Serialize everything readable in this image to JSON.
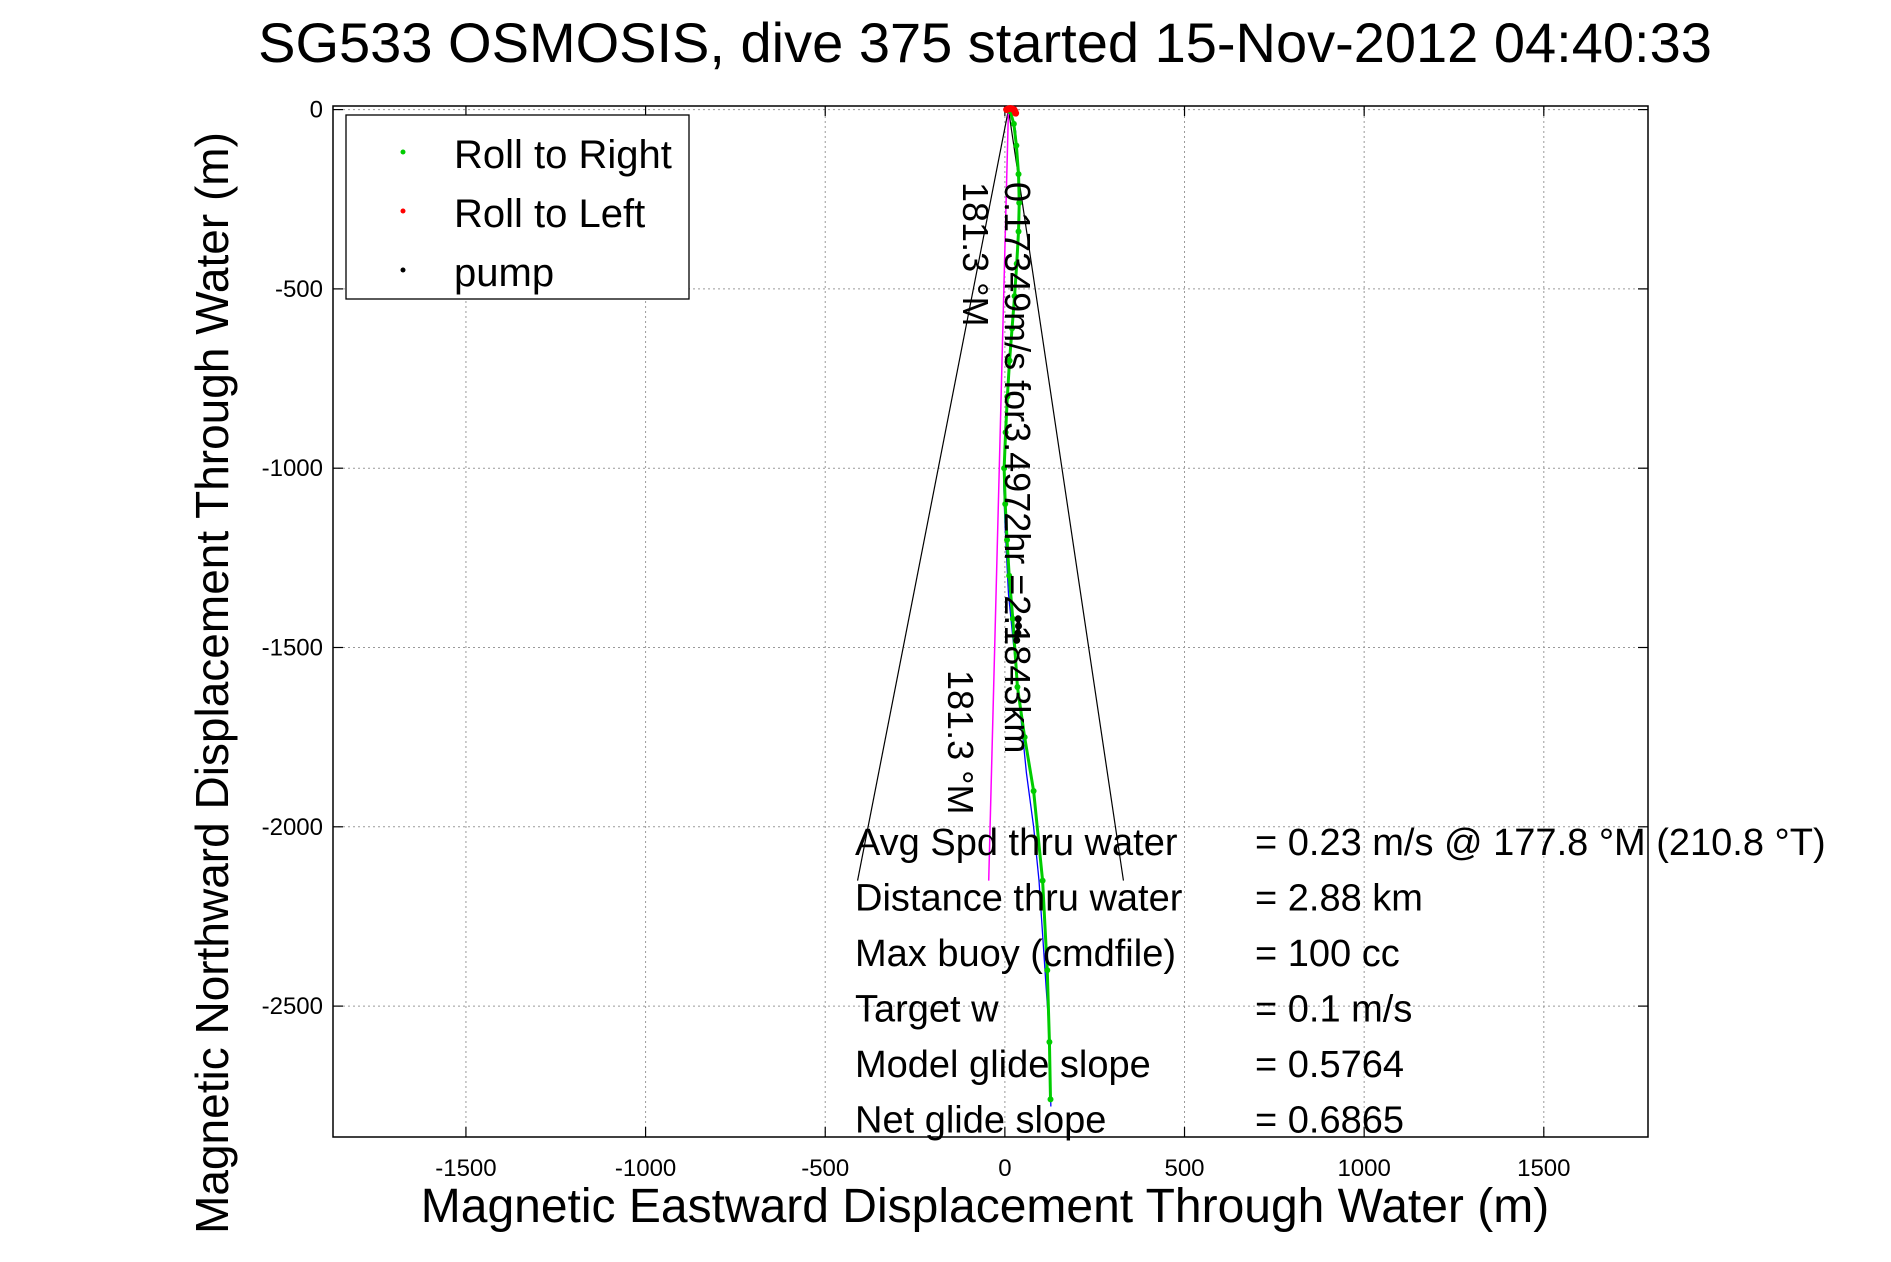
{
  "chart_data": {
    "type": "line",
    "title": "SG533 OSMOSIS, dive 375 started 15-Nov-2012 04:40:33",
    "xlabel": "Magnetic Eastward Displacement Through Water (m)",
    "ylabel": "Magnetic Northward Displacement Through Water (m)",
    "xlim": [
      -1870,
      1790
    ],
    "ylim": [
      -2865,
      10
    ],
    "x_ticks": [
      -1500,
      -1000,
      -500,
      0,
      500,
      1000,
      1500
    ],
    "y_ticks": [
      0,
      -500,
      -1000,
      -1500,
      -2000,
      -2500
    ],
    "x_tick_labels": [
      "-1500",
      "-1000",
      "-500",
      "0",
      "500",
      "1000",
      "1500"
    ],
    "y_tick_labels": [
      "0",
      "-500",
      "-1000",
      "-1500",
      "-2000",
      "-2500"
    ],
    "grid": true,
    "legend": {
      "placement": "top-left",
      "entries": [
        {
          "label": "Roll to Right",
          "color": "#00cc00"
        },
        {
          "label": "Roll to Left",
          "color": "#ff0000"
        },
        {
          "label": "pump",
          "color": "#000000"
        }
      ]
    },
    "series": [
      {
        "name": "track",
        "color": "#0000ff",
        "x": [
          10,
          20,
          30,
          35,
          40,
          38,
          32,
          25,
          18,
          10,
          5,
          0,
          -3,
          0,
          5,
          10,
          20,
          30,
          45,
          60,
          80,
          95,
          105,
          115,
          122,
          125,
          128
        ],
        "y": [
          0,
          -20,
          -60,
          -150,
          -250,
          -350,
          -450,
          -550,
          -650,
          -750,
          -850,
          -950,
          -1050,
          -1150,
          -1250,
          -1350,
          -1450,
          -1550,
          -1700,
          -1850,
          -2000,
          -2150,
          -2300,
          -2450,
          -2550,
          -2650,
          -2780
        ]
      },
      {
        "name": "Roll to Right",
        "color": "#00cc00",
        "x": [
          15,
          25,
          32,
          38,
          40,
          38,
          33,
          27,
          20,
          13,
          7,
          2,
          -2,
          1,
          6,
          12,
          22,
          35,
          55,
          80,
          105,
          118,
          124,
          127
        ],
        "y": [
          -5,
          -40,
          -100,
          -180,
          -260,
          -340,
          -430,
          -520,
          -610,
          -700,
          -800,
          -900,
          -1000,
          -1100,
          -1200,
          -1300,
          -1420,
          -1610,
          -1750,
          -1900,
          -2150,
          -2400,
          -2600,
          -2760
        ]
      },
      {
        "name": "Roll to Left",
        "color": "#ff0000",
        "x": [
          5,
          10,
          15,
          20,
          25,
          28,
          30
        ],
        "y": [
          0,
          2,
          3,
          2,
          0,
          -5,
          -10
        ]
      },
      {
        "name": "pump",
        "color": "#000000",
        "x": [
          37,
          38,
          36,
          33
        ],
        "y": [
          -1420,
          -1440,
          -1460,
          -1480
        ]
      }
    ],
    "current_line": {
      "color": "#ff00ff",
      "x": [
        10,
        -45
      ],
      "y": [
        0,
        -2150
      ]
    },
    "cone_lines": {
      "color": "#000000",
      "apex": [
        10,
        0
      ],
      "ends": [
        [
          -410,
          -2150
        ],
        [
          330,
          -2150
        ]
      ]
    },
    "track_label": "0.17349m/s for3.4972hr =2.1843km",
    "heading_labels": [
      "181.3 °M",
      "181.3 °M"
    ],
    "annotations": [
      {
        "label": "Avg Spd thru water",
        "value": "=  0.23 m/s @ 177.8 °M (210.8 °T)"
      },
      {
        "label": "Distance thru water",
        "value": "=  2.88 km"
      },
      {
        "label": "Max buoy (cmdfile)",
        "value": "= 100 cc"
      },
      {
        "label": "Target w",
        "value": "= 0.1 m/s"
      },
      {
        "label": "Model glide slope",
        "value": "= 0.5764"
      },
      {
        "label": "Net glide slope",
        "value": "= 0.6865"
      }
    ]
  }
}
